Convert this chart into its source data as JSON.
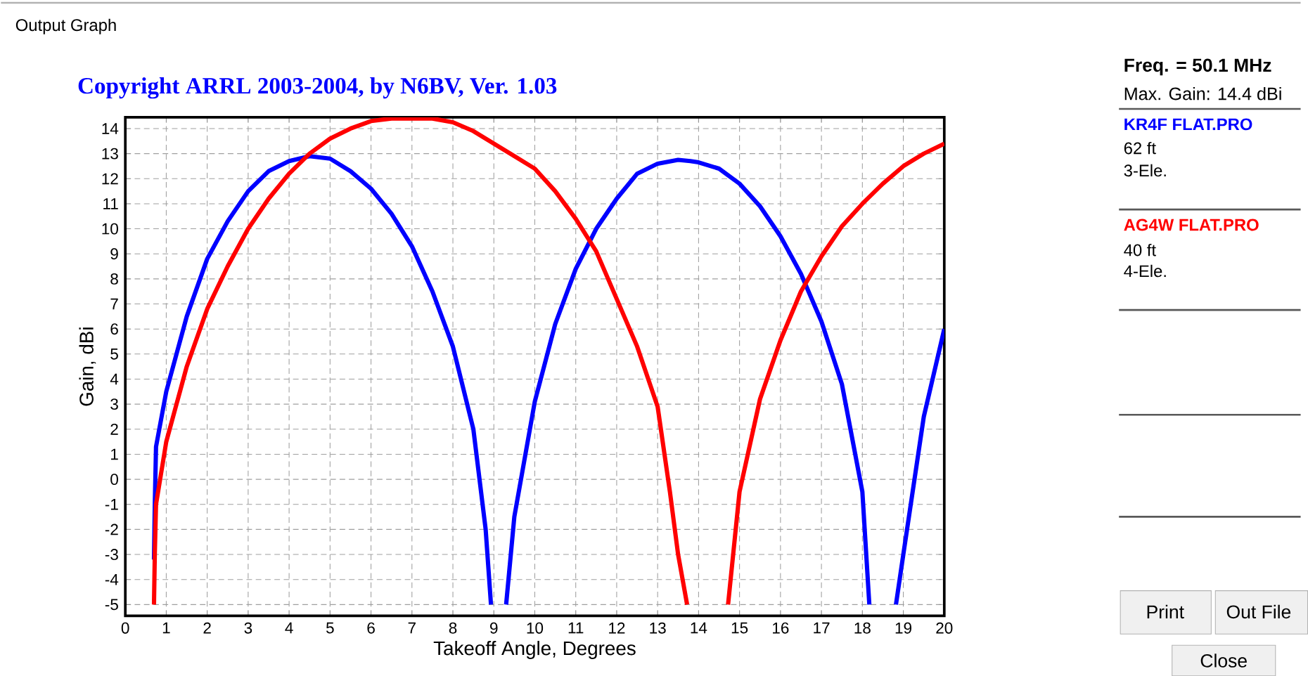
{
  "chart_data": {
    "type": "line",
    "title": "Copyright ARRL 2003-2004, by N6BV, Ver. 1.03",
    "xlabel": "Takeoff Angle, Degrees",
    "ylabel": "Gain, dBi",
    "xlim": [
      0,
      20
    ],
    "ylim": [
      -5.45,
      14.45
    ],
    "xticks": [
      0,
      1,
      2,
      3,
      4,
      5,
      6,
      7,
      8,
      9,
      10,
      11,
      12,
      13,
      14,
      15,
      16,
      17,
      18,
      19,
      20
    ],
    "yticks": [
      -5,
      -4,
      -3,
      -2,
      -1,
      0,
      1,
      2,
      3,
      4,
      5,
      6,
      7,
      8,
      9,
      10,
      11,
      12,
      13,
      14
    ],
    "grid": true,
    "legend": "right",
    "marker": "none",
    "line_style": "solid",
    "series": [
      {
        "name": "KR4F FLAT.PRO",
        "color": "#0000ff",
        "x": [
          0.7,
          0.72,
          0.75,
          1,
          1.5,
          2,
          2.5,
          3,
          3.5,
          4,
          4.5,
          5,
          5.5,
          6,
          6.5,
          7,
          7.5,
          8,
          8.5,
          8.8,
          8.93,
          9.1,
          9.3,
          9.5,
          10,
          10.5,
          11,
          11.5,
          12,
          12.5,
          13,
          13.5,
          13.8,
          14,
          14.5,
          15,
          15.5,
          16,
          16.5,
          17,
          17.5,
          18,
          18.17,
          18.5,
          18.82,
          19,
          19.5,
          20
        ],
        "values": [
          -3.2,
          -1,
          1.3,
          3.5,
          6.5,
          8.8,
          10.3,
          11.5,
          12.3,
          12.7,
          12.9,
          12.8,
          12.3,
          11.6,
          10.6,
          9.3,
          7.5,
          5.3,
          2,
          -2,
          -5,
          null,
          -5,
          -1.5,
          3.1,
          6.2,
          8.4,
          10,
          11.2,
          12.2,
          12.6,
          12.75,
          12.7,
          12.65,
          12.4,
          11.8,
          10.9,
          9.7,
          8.2,
          6.3,
          3.8,
          -0.5,
          -5,
          null,
          -5,
          -3,
          2.5,
          6
        ]
      },
      {
        "name": "AG4W FLAT.PRO",
        "color": "#ff0000",
        "x": [
          0.7,
          0.72,
          0.75,
          1,
          1.5,
          2,
          2.5,
          3,
          3.5,
          4,
          4.5,
          5,
          5.5,
          6,
          6.5,
          7,
          7.5,
          8,
          8.5,
          9,
          9.5,
          10,
          10.5,
          11,
          11.5,
          12,
          12.5,
          13,
          13.3,
          13.5,
          13.72,
          14.2,
          14.72,
          15,
          15.5,
          16,
          16.5,
          17,
          17.5,
          18,
          18.5,
          19,
          19.5,
          20
        ],
        "values": [
          -5,
          -3,
          -1,
          1.5,
          4.5,
          6.8,
          8.5,
          10,
          11.2,
          12.2,
          13,
          13.6,
          14,
          14.3,
          14.4,
          14.4,
          14.4,
          14.25,
          13.9,
          13.4,
          12.9,
          12.4,
          11.5,
          10.4,
          9.1,
          7.2,
          5.3,
          2.9,
          -0.5,
          -3,
          -5,
          null,
          -5,
          -0.5,
          3.2,
          5.55,
          7.5,
          8.9,
          10.1,
          11,
          11.8,
          12.5,
          13,
          13.4
        ]
      }
    ],
    "annotations": [
      "Output Graph",
      "Freq. = 50.1 MHz",
      "Max. Gain: 14.4 dBi",
      "62 ft",
      "3-Ele.",
      "40 ft",
      "4-Ele.",
      "Print",
      "Out File",
      "Close"
    ]
  }
}
